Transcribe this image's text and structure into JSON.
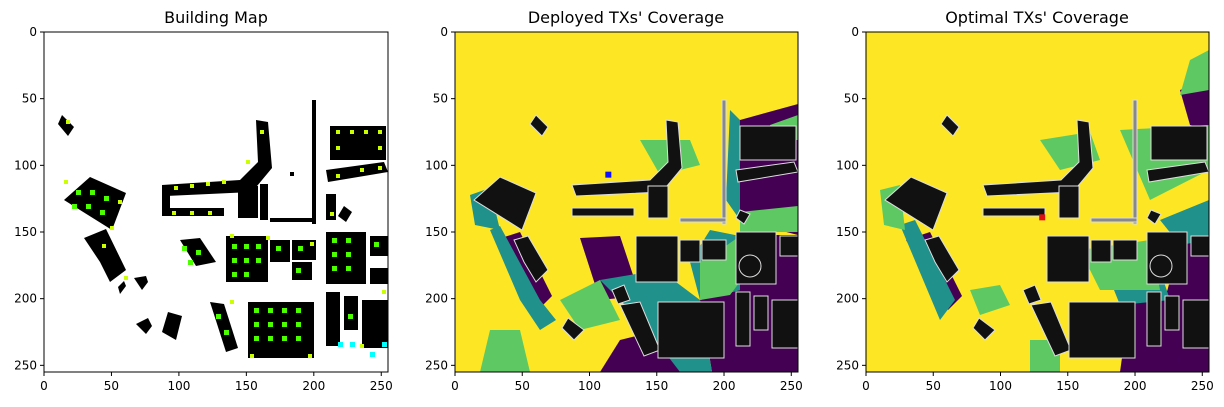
{
  "figure": {
    "panels": [
      {
        "title": "Building Map",
        "type": "heatmap",
        "xticks": [
          0,
          50,
          100,
          150,
          200,
          250
        ],
        "yticks": [
          0,
          50,
          100,
          150,
          200,
          250
        ],
        "xlim": [
          0,
          255
        ],
        "ylim": [
          255,
          0
        ],
        "colors": {
          "building": "#000000",
          "free": "#ffffff",
          "sample_green": "#4cff00",
          "sample_yellow": "#ccff00",
          "sample_cyan": "#00ffff"
        }
      },
      {
        "title": "Deployed TXs' Coverage",
        "type": "heatmap",
        "xticks": [
          0,
          50,
          100,
          150,
          200,
          250
        ],
        "yticks": [
          0,
          50,
          100,
          150,
          200,
          250
        ],
        "xlim": [
          0,
          255
        ],
        "ylim": [
          255,
          0
        ],
        "tx_marker": {
          "x": 114,
          "y": 107,
          "color": "#1010ff"
        },
        "colors": {
          "high": "#fde725",
          "mid": "#5ec962",
          "low": "#21918c",
          "none": "#440154",
          "building": "#1a1a1a"
        }
      },
      {
        "title": "Optimal TXs' Coverage",
        "type": "heatmap",
        "xticks": [
          0,
          50,
          100,
          150,
          200,
          250
        ],
        "yticks": [
          0,
          50,
          100,
          150,
          200,
          250
        ],
        "xlim": [
          0,
          255
        ],
        "ylim": [
          255,
          0
        ],
        "tx_marker": {
          "x": 131,
          "y": 139,
          "color": "#e01010"
        },
        "colors": {
          "high": "#fde725",
          "mid": "#5ec962",
          "low": "#21918c",
          "none": "#440154",
          "building": "#1a1a1a"
        }
      }
    ]
  }
}
